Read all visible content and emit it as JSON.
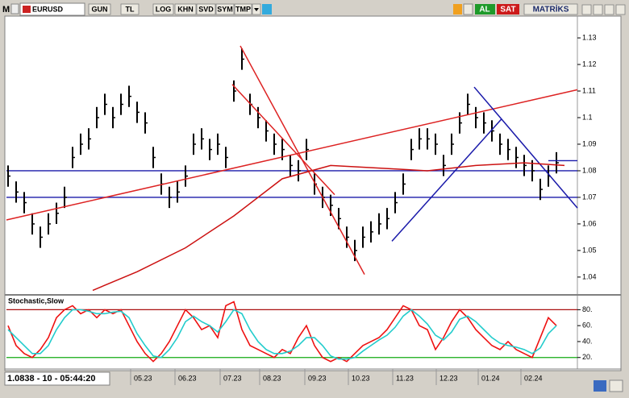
{
  "toolbar": {
    "menu": "M",
    "symbol": "EURUSD",
    "buttons": [
      "GUN",
      "TL",
      "LOG",
      "KHN",
      "SVD",
      "SYM",
      "TMP"
    ],
    "buy": "AL",
    "sell": "SAT",
    "brand": "MATRİKS"
  },
  "status": "1.0838 - 10 - 05:44:20",
  "chart_data": [
    {
      "type": "ohlc",
      "bar_color": "#000000",
      "high": [
        1.082,
        1.076,
        1.072,
        1.064,
        1.059,
        1.064,
        1.068,
        1.074,
        1.089,
        1.094,
        1.096,
        1.104,
        1.109,
        1.104,
        1.109,
        1.112,
        1.106,
        1.102,
        1.089,
        1.079,
        1.074,
        1.076,
        1.082,
        1.094,
        1.096,
        1.092,
        1.094,
        1.089,
        1.114,
        1.126,
        1.109,
        1.104,
        1.099,
        1.094,
        1.092,
        1.086,
        1.084,
        1.092,
        1.079,
        1.074,
        1.071,
        1.066,
        1.059,
        1.054,
        1.059,
        1.061,
        1.064,
        1.066,
        1.072,
        1.079,
        1.092,
        1.096,
        1.096,
        1.094,
        1.086,
        1.094,
        1.102,
        1.109,
        1.104,
        1.102,
        1.099,
        1.094,
        1.092,
        1.089,
        1.086,
        1.084,
        1.077,
        1.082,
        1.087
      ],
      "low": [
        1.074,
        1.068,
        1.064,
        1.056,
        1.051,
        1.056,
        1.06,
        1.066,
        1.081,
        1.086,
        1.088,
        1.096,
        1.101,
        1.096,
        1.101,
        1.104,
        1.098,
        1.094,
        1.081,
        1.071,
        1.066,
        1.068,
        1.074,
        1.086,
        1.088,
        1.084,
        1.086,
        1.081,
        1.106,
        1.118,
        1.101,
        1.096,
        1.091,
        1.086,
        1.084,
        1.078,
        1.076,
        1.084,
        1.071,
        1.066,
        1.063,
        1.058,
        1.051,
        1.046,
        1.051,
        1.053,
        1.056,
        1.058,
        1.064,
        1.071,
        1.084,
        1.088,
        1.088,
        1.086,
        1.078,
        1.086,
        1.094,
        1.101,
        1.096,
        1.094,
        1.091,
        1.086,
        1.084,
        1.081,
        1.078,
        1.076,
        1.069,
        1.074,
        1.079
      ],
      "close": [
        1.078,
        1.072,
        1.068,
        1.06,
        1.055,
        1.06,
        1.064,
        1.07,
        1.085,
        1.09,
        1.092,
        1.1,
        1.105,
        1.1,
        1.105,
        1.108,
        1.102,
        1.098,
        1.085,
        1.075,
        1.07,
        1.072,
        1.078,
        1.09,
        1.092,
        1.088,
        1.09,
        1.085,
        1.11,
        1.122,
        1.105,
        1.1,
        1.095,
        1.09,
        1.088,
        1.082,
        1.08,
        1.088,
        1.075,
        1.07,
        1.067,
        1.062,
        1.055,
        1.05,
        1.055,
        1.057,
        1.06,
        1.062,
        1.068,
        1.075,
        1.088,
        1.092,
        1.092,
        1.09,
        1.082,
        1.09,
        1.098,
        1.105,
        1.1,
        1.098,
        1.095,
        1.09,
        1.088,
        1.085,
        1.082,
        1.08,
        1.073,
        1.078,
        1.083
      ],
      "xlim": [
        -0.2,
        70.6
      ],
      "xticks": [
        {
          "value": 15.2,
          "label": "05.23"
        },
        {
          "value": 20.7,
          "label": "06.23"
        },
        {
          "value": 26.3,
          "label": "07.23"
        },
        {
          "value": 31.2,
          "label": "08.23"
        },
        {
          "value": 36.8,
          "label": "09.23"
        },
        {
          "value": 42.2,
          "label": "10.23"
        },
        {
          "value": 47.7,
          "label": "11.23"
        },
        {
          "value": 53.1,
          "label": "12.23"
        },
        {
          "value": 58.3,
          "label": "01.24"
        },
        {
          "value": 63.6,
          "label": "02.24"
        }
      ],
      "ylim": [
        1.0336,
        1.1382
      ],
      "yticks": [
        1.04,
        1.05,
        1.06,
        1.07,
        1.08,
        1.09,
        1.1,
        1.11,
        1.12,
        1.13
      ],
      "levels": [
        {
          "value": 1.08,
          "color": "#1a1aaa"
        },
        {
          "value": 1.07,
          "color": "#1a1aaa"
        }
      ],
      "last_price": 1.0838,
      "trendlines": [
        {
          "color": "#dd2222",
          "x": [
            -0.2,
            70.6
          ],
          "y": [
            1.0615,
            1.1105
          ]
        },
        {
          "color": "#dd2222",
          "x": [
            28.8,
            44.2
          ],
          "y": [
            1.127,
            1.041
          ]
        },
        {
          "color": "#dd2222",
          "x": [
            27.8,
            40.5
          ],
          "y": [
            1.1125,
            1.071
          ]
        },
        {
          "color": "#1a1aaa",
          "x": [
            47.6,
            61.2
          ],
          "y": [
            1.0535,
            1.0995
          ]
        },
        {
          "color": "#1a1aaa",
          "x": [
            57.8,
            70.6
          ],
          "y": [
            1.1115,
            1.066
          ]
        },
        {
          "color": "#cc1111",
          "x": [
            10.5,
            16,
            22,
            28,
            34,
            40,
            46,
            52,
            58,
            64,
            69
          ],
          "y": [
            1.035,
            1.042,
            1.051,
            1.063,
            1.077,
            1.082,
            1.081,
            1.08,
            1.082,
            1.083,
            1.082
          ]
        }
      ]
    },
    {
      "type": "line",
      "title": "Stochastic,Slow",
      "xlim": [
        -0.2,
        70.6
      ],
      "ylim": [
        8.6,
        96.6
      ],
      "yticks": [
        {
          "value": 20,
          "label": "20."
        },
        {
          "value": 40,
          "label": "40."
        },
        {
          "value": 60,
          "label": "60."
        },
        {
          "value": 80,
          "label": "80."
        }
      ],
      "levels": [
        {
          "value": 80,
          "color": "#aa1111"
        },
        {
          "value": 20,
          "color": "#11aa11"
        }
      ],
      "series": [
        {
          "color": "#ee1111",
          "values": [
            60,
            35,
            25,
            20,
            30,
            45,
            70,
            80,
            85,
            75,
            80,
            70,
            80,
            75,
            80,
            60,
            40,
            25,
            15,
            25,
            40,
            60,
            80,
            70,
            55,
            60,
            45,
            85,
            90,
            55,
            35,
            30,
            25,
            20,
            30,
            25,
            45,
            60,
            35,
            20,
            15,
            20,
            15,
            25,
            35,
            40,
            45,
            55,
            70,
            85,
            80,
            60,
            55,
            30,
            45,
            65,
            80,
            70,
            55,
            45,
            35,
            30,
            40,
            30,
            25,
            20,
            45,
            70,
            60
          ]
        },
        {
          "color": "#22cccc",
          "values": [
            55,
            45,
            35,
            25,
            25,
            35,
            55,
            70,
            80,
            80,
            78,
            75,
            75,
            77,
            78,
            70,
            50,
            35,
            22,
            20,
            30,
            45,
            65,
            72,
            65,
            60,
            52,
            65,
            80,
            75,
            55,
            40,
            30,
            25,
            25,
            28,
            35,
            45,
            45,
            35,
            22,
            18,
            18,
            20,
            28,
            35,
            42,
            48,
            58,
            72,
            80,
            72,
            62,
            48,
            42,
            52,
            68,
            72,
            65,
            55,
            45,
            38,
            35,
            33,
            30,
            25,
            32,
            50,
            60
          ]
        }
      ]
    }
  ]
}
